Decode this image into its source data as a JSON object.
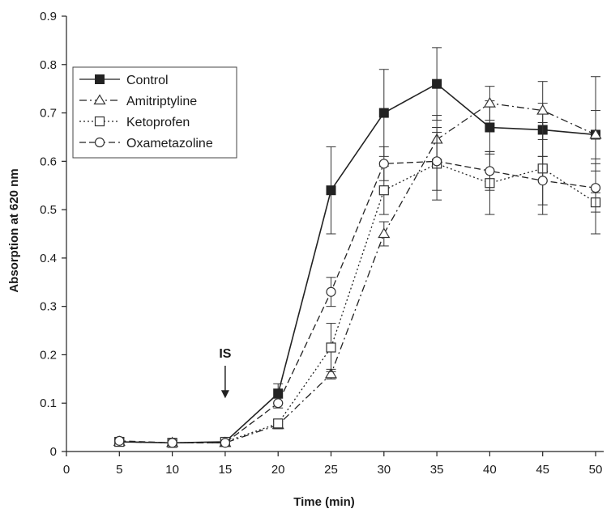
{
  "chart_data": {
    "type": "line",
    "title": "",
    "xlabel": "Time (min)",
    "ylabel": "Absorption at 620 nm",
    "xlim": [
      0,
      50
    ],
    "ylim": [
      0,
      0.9
    ],
    "x_ticks": [
      "0",
      "5",
      "10",
      "15",
      "20",
      "25",
      "30",
      "35",
      "40",
      "45",
      "50"
    ],
    "y_ticks": [
      "0",
      "0.1",
      "0.2",
      "0.3",
      "0.4",
      "0.5",
      "0.6",
      "0.7",
      "0.8",
      "0.9"
    ],
    "grid": false,
    "legend_position": "top-left",
    "annotation": {
      "text": "IS",
      "x": 15,
      "arrow_to_y": 0.11
    },
    "series": [
      {
        "name": "Control",
        "marker": "filled-square",
        "line": "solid",
        "x": [
          5,
          10,
          15,
          20,
          25,
          30,
          35,
          40,
          45,
          50
        ],
        "values": [
          0.02,
          0.018,
          0.02,
          0.12,
          0.54,
          0.7,
          0.76,
          0.67,
          0.665,
          0.655
        ],
        "error": [
          0.005,
          0.005,
          0.005,
          0.02,
          0.09,
          0.09,
          0.075,
          0.055,
          0.055,
          0.05
        ]
      },
      {
        "name": "Amitriptyline",
        "marker": "open-triangle",
        "line": "dash-dot",
        "x": [
          5,
          10,
          15,
          20,
          25,
          30,
          35,
          40,
          45,
          50
        ],
        "values": [
          0.02,
          0.018,
          0.018,
          0.055,
          0.16,
          0.45,
          0.645,
          0.72,
          0.705,
          0.655
        ],
        "error": [
          0.005,
          0.005,
          0.005,
          0.008,
          0.01,
          0.025,
          0.05,
          0.035,
          0.06,
          0.12
        ]
      },
      {
        "name": "Ketoprofen",
        "marker": "open-square",
        "line": "dotted",
        "x": [
          5,
          10,
          15,
          20,
          25,
          30,
          35,
          40,
          45,
          50
        ],
        "values": [
          0.02,
          0.018,
          0.02,
          0.058,
          0.215,
          0.54,
          0.595,
          0.555,
          0.585,
          0.515
        ],
        "error": [
          0.005,
          0.005,
          0.005,
          0.008,
          0.05,
          0.05,
          0.075,
          0.065,
          0.095,
          0.065
        ]
      },
      {
        "name": "Oxametazoline",
        "marker": "open-circle",
        "line": "long-dash",
        "x": [
          5,
          10,
          15,
          20,
          25,
          30,
          35,
          40,
          45,
          50
        ],
        "values": [
          0.022,
          0.018,
          0.018,
          0.1,
          0.33,
          0.595,
          0.6,
          0.58,
          0.56,
          0.545
        ],
        "error": [
          0.005,
          0.005,
          0.005,
          0.01,
          0.03,
          0.035,
          0.06,
          0.04,
          0.05,
          0.05
        ]
      }
    ]
  }
}
